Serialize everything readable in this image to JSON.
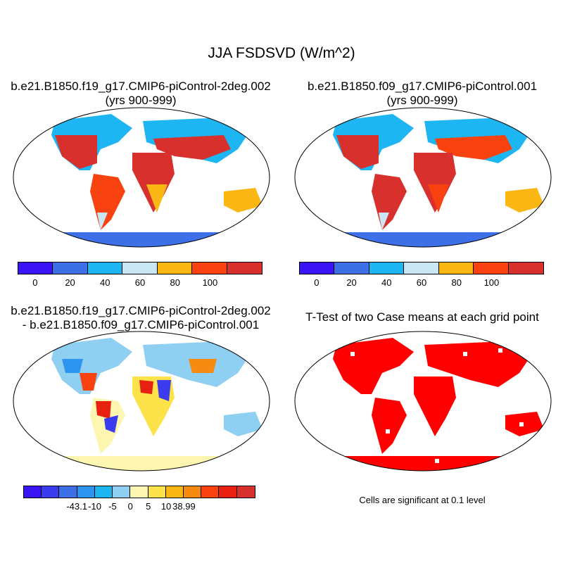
{
  "figure": {
    "title": "JJA FSDSVD (W/m^2)"
  },
  "panels": {
    "top_left": {
      "title_line1": "b.e21.B1850.f19_g17.CMIP6-piControl-2deg.002",
      "title_line2": "(yrs 900-999)"
    },
    "top_right": {
      "title_line1": "b.e21.B1850.f09_g17.CMIP6-piControl.001",
      "title_line2": "(yrs 900-999)"
    },
    "bottom_left": {
      "title_line1": "b.e21.B1850.f19_g17.CMIP6-piControl-2deg.002",
      "title_line2": "- b.e21.B1850.f09_g17.CMIP6-piControl.001"
    },
    "bottom_right": {
      "title_line1": "T-Test of two Case means at each grid point",
      "note": "Cells are significant at 0.1 level"
    }
  },
  "colorbars": {
    "case": {
      "colors": [
        "#3a14f5",
        "#3d6fe6",
        "#1db5f2",
        "#c8e6f4",
        "#fbb714",
        "#f8420f",
        "#d8302d"
      ],
      "tick_labels": [
        "0",
        "20",
        "40",
        "60",
        "80",
        "100"
      ]
    },
    "diff": {
      "colors": [
        "#3a14f5",
        "#3b3cf0",
        "#3d6fe6",
        "#2d95f0",
        "#1db5f2",
        "#8fd0f2",
        "#fdf6b0",
        "#fde24a",
        "#fbb714",
        "#f78a10",
        "#f8420f",
        "#e8200f",
        "#d8302d"
      ],
      "tick_labels": [
        "-43.1",
        "-10",
        "-5",
        "0",
        "5",
        "10",
        "38.99"
      ]
    }
  },
  "significance_color": "#ff0000"
}
